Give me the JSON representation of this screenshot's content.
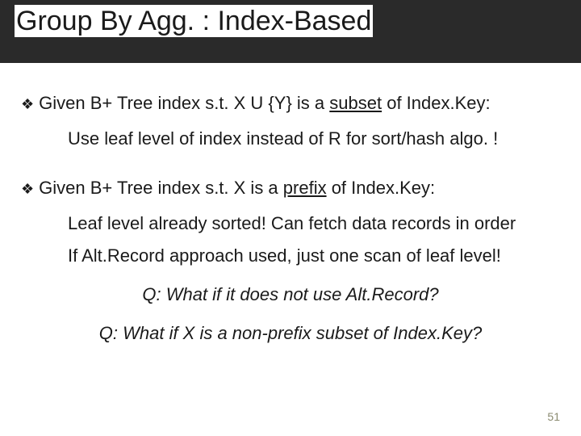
{
  "colors": {
    "titlebar_bg": "#2a2a2a",
    "text": "#1a1a1a",
    "pagenum": "#8a8a70"
  },
  "title": "Group By Agg. : Index-Based",
  "bullets": [
    {
      "prefix": "Given B+ Tree index s.t. X U {Y} is a ",
      "underlined": "subset",
      "suffix": " of Index.Key:",
      "subs": [
        "Use leaf level of index instead of R for sort/hash algo. !"
      ]
    },
    {
      "prefix": "Given B+ Tree index s.t. X is a ",
      "underlined": "prefix",
      "suffix": " of Index.Key:",
      "subs": [
        "Leaf level already sorted! Can fetch data records in order",
        "If Alt.Record approach used, just one scan of leaf level!"
      ]
    }
  ],
  "questions": [
    "Q: What if it does not use Alt.Record?",
    "Q: What if X is a non-prefix subset of Index.Key?"
  ],
  "page_number": "51",
  "bullet_glyph": "❖"
}
